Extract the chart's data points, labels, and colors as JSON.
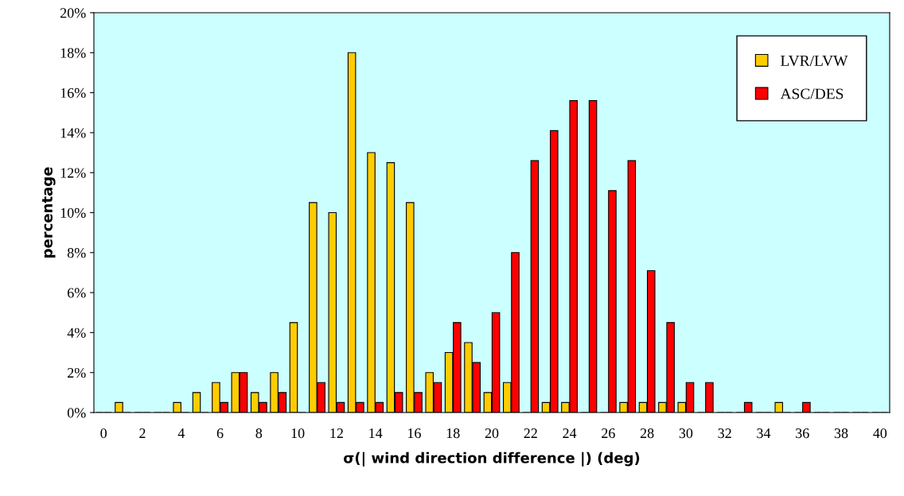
{
  "chart_data": {
    "type": "bar",
    "xlabel": "σ(| wind direction difference |) (deg)",
    "ylabel": "percentage",
    "categories": [
      "0",
      null,
      "2",
      null,
      "4",
      null,
      "6",
      null,
      "8",
      null,
      "10",
      null,
      "12",
      null,
      "14",
      null,
      "16",
      null,
      "18",
      null,
      "20",
      null,
      "22",
      null,
      "24",
      null,
      "26",
      null,
      "28",
      null,
      "30",
      null,
      "32",
      null,
      "34",
      null,
      "36",
      null,
      "38",
      null,
      "40"
    ],
    "series": [
      {
        "name": "LVR/LVW",
        "color": "#ffcc00",
        "values": [
          0,
          0.5,
          0,
          0,
          0.5,
          1,
          1.5,
          2,
          1,
          2,
          4.5,
          10.5,
          10,
          18,
          13,
          12.5,
          10.5,
          2,
          3,
          3.5,
          1,
          1.5,
          0,
          0.5,
          0.5,
          0,
          0,
          0.5,
          0.5,
          0.5,
          0.5,
          0,
          0,
          0,
          0,
          0.5,
          0,
          0,
          0,
          0,
          0
        ]
      },
      {
        "name": "ASC/DES",
        "color": "#ff0000",
        "values": [
          0,
          0,
          0,
          0,
          0,
          0,
          0.5,
          2,
          0.5,
          1,
          0,
          1.5,
          0.5,
          0.5,
          0.5,
          1,
          1,
          1.5,
          4.5,
          2.5,
          5,
          8,
          12.6,
          14.1,
          15.6,
          15.6,
          11.1,
          12.6,
          7.1,
          4.5,
          1.5,
          1.5,
          0,
          0.5,
          0,
          0,
          0.5,
          0,
          0,
          0,
          0
        ]
      }
    ],
    "ylim": [
      0,
      20
    ],
    "yticks": [
      {
        "value": 0,
        "label": "0%"
      },
      {
        "value": 2,
        "label": "2%"
      },
      {
        "value": 4,
        "label": "4%"
      },
      {
        "value": 6,
        "label": "6%"
      },
      {
        "value": 8,
        "label": "8%"
      },
      {
        "value": 10,
        "label": "10%"
      },
      {
        "value": 12,
        "label": "12%"
      },
      {
        "value": 14,
        "label": "14%"
      },
      {
        "value": 16,
        "label": "16%"
      },
      {
        "value": 18,
        "label": "18%"
      },
      {
        "value": 20,
        "label": "20%"
      }
    ],
    "grid": false,
    "legend": "top right"
  }
}
